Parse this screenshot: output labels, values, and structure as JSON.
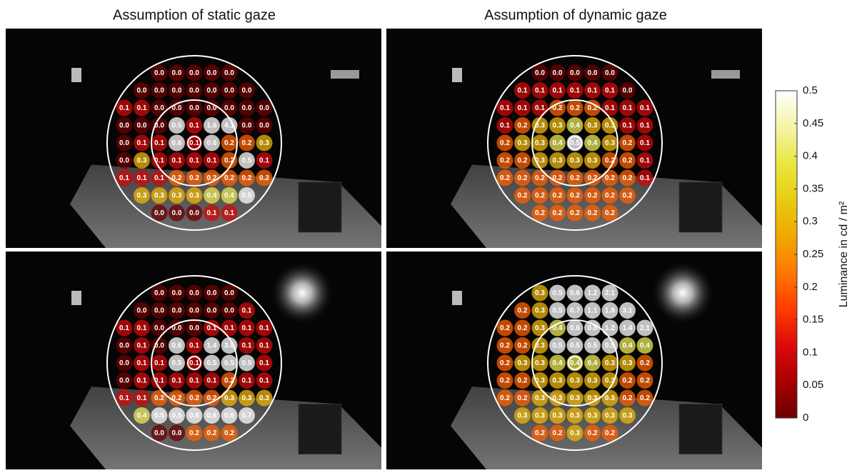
{
  "chart_data": {
    "type": "circle-grid",
    "titles": [
      "Assumption of static gaze",
      "Assumption of dynamic gaze"
    ],
    "panels": [
      {
        "values": [
          [
            0.0,
            0.0,
            0.0,
            0.0,
            0.0
          ],
          [
            0.0,
            0.0,
            0.0,
            0.0,
            0.0,
            0.0,
            0.0
          ],
          [
            0.1,
            0.1,
            0.0,
            0.0,
            0.0,
            0.0,
            0.0,
            0.0,
            0.0
          ],
          [
            0.0,
            0.0,
            0.0,
            0.5,
            0.1,
            1.6,
            4.1,
            0.0,
            0.0
          ],
          [
            0.0,
            0.1,
            0.1,
            0.6,
            0.1,
            0.6,
            0.2,
            0.2,
            0.3
          ],
          [
            0.0,
            0.3,
            0.1,
            0.1,
            0.1,
            0.1,
            0.2,
            0.5,
            0.1
          ],
          [
            0.1,
            0.1,
            0.1,
            0.2,
            0.2,
            0.2,
            0.2,
            0.2,
            0.2
          ],
          [
            0.3,
            0.3,
            0.3,
            0.3,
            0.4,
            0.4,
            0.5
          ],
          [
            0.0,
            0.0,
            0.0,
            0.1,
            0.1
          ]
        ],
        "value_labels": [
          [
            "0.0",
            "0.0",
            "0.0",
            "0.0",
            "0.0"
          ],
          [
            "0.0",
            "0.0",
            "0.0",
            "0.0",
            "0.0",
            "0.0",
            "0.0"
          ],
          [
            "0.1",
            "0.1",
            "0.0",
            "0.0",
            "0.0",
            "0.0",
            "0.0",
            "0.0",
            "0.0"
          ],
          [
            "0.0",
            "0.0",
            "0.0",
            "0.5",
            "0.1",
            "1.6",
            "4.1",
            "0.0",
            "0.0"
          ],
          [
            "0.0",
            "0.1",
            "0.1",
            "0.6",
            "0.1",
            "0.6",
            "0.2",
            "0.2",
            "0.3"
          ],
          [
            "0.0",
            "0.3",
            "0.1",
            "0.1",
            "0.1",
            "0.1",
            "0.2",
            "0.5",
            "0.1"
          ],
          [
            "0.1",
            "0.1",
            "0.1",
            "0.2",
            "0.2",
            "0.2",
            "0.2",
            "0.2",
            "0.2"
          ],
          [
            "0.3",
            "0.3",
            "0.3",
            "0.3",
            "0.4",
            "0.4",
            "0.5"
          ],
          [
            "0.0",
            "0.0",
            "0.0",
            "0.1",
            "0.1"
          ]
        ]
      },
      {
        "values": [
          [
            0.0,
            0.0,
            0.0,
            0.0,
            0.0
          ],
          [
            0.1,
            0.1,
            0.1,
            0.1,
            0.1,
            0.1,
            0.0
          ],
          [
            0.1,
            0.1,
            0.1,
            0.2,
            0.2,
            0.2,
            0.1,
            0.1,
            0.1
          ],
          [
            0.1,
            0.2,
            0.3,
            0.3,
            0.4,
            0.3,
            0.3,
            0.1,
            0.1
          ],
          [
            0.2,
            0.3,
            0.3,
            0.4,
            0.5,
            0.4,
            0.3,
            0.2,
            0.1
          ],
          [
            0.2,
            0.2,
            0.3,
            0.3,
            0.3,
            0.3,
            0.2,
            0.2,
            0.1
          ],
          [
            0.2,
            0.2,
            0.2,
            0.2,
            0.2,
            0.2,
            0.2,
            0.2,
            0.1
          ],
          [
            0.2,
            0.2,
            0.2,
            0.2,
            0.2,
            0.2,
            0.2
          ],
          [
            0.2,
            0.2,
            0.2,
            0.2,
            0.2
          ]
        ],
        "value_labels": [
          [
            "0.0",
            "0.0",
            "0.0",
            "0.0",
            "0.0"
          ],
          [
            "0.1",
            "0.1",
            "0.1",
            "0.1",
            "0.1",
            "0.1",
            "0.0"
          ],
          [
            "0.1",
            "0.1",
            "0.1",
            "0.2",
            "0.2",
            "0.2",
            "0.1",
            "0.1",
            "0.1"
          ],
          [
            "0.1",
            "0.2",
            "0.3",
            "0.3",
            "0.4",
            "0.3",
            "0.3",
            "0.1",
            "0.1"
          ],
          [
            "0.2",
            "0.3",
            "0.3",
            "0.4",
            "0.5",
            "0.4",
            "0.3",
            "0.2",
            "0.1"
          ],
          [
            "0.2",
            "0.2",
            "0.3",
            "0.3",
            "0.3",
            "0.3",
            "0.2",
            "0.2",
            "0.1"
          ],
          [
            "0.2",
            "0.2",
            "0.2",
            "0.2",
            "0.2",
            "0.2",
            "0.2",
            "0.2",
            "0.1"
          ],
          [
            "0.2",
            "0.2",
            "0.2",
            "0.2",
            "0.2",
            "0.2",
            "0.2"
          ],
          [
            "0.2",
            "0.2",
            "0.2",
            "0.2",
            "0.2"
          ]
        ]
      },
      {
        "values": [
          [
            0.0,
            0.0,
            0.0,
            0.0,
            0.0
          ],
          [
            0.0,
            0.0,
            0.0,
            0.0,
            0.0,
            0.0,
            0.1
          ],
          [
            0.1,
            0.1,
            0.0,
            0.0,
            0.0,
            0.1,
            0.1,
            0.1,
            0.1
          ],
          [
            0.0,
            0.1,
            0.0,
            0.6,
            0.1,
            1.4,
            3.0,
            0.1,
            0.1
          ],
          [
            0.0,
            0.1,
            0.1,
            0.5,
            0.1,
            0.5,
            0.5,
            0.5,
            0.1
          ],
          [
            0.0,
            0.1,
            0.1,
            0.1,
            0.1,
            0.1,
            0.2,
            0.1,
            0.1
          ],
          [
            0.1,
            0.1,
            0.2,
            0.2,
            0.2,
            0.2,
            0.3,
            0.3,
            0.3
          ],
          [
            0.4,
            0.5,
            0.5,
            0.6,
            0.6,
            0.6,
            0.7
          ],
          [
            0.0,
            0.0,
            0.2,
            0.2,
            0.2
          ]
        ],
        "value_labels": [
          [
            "0.0",
            "0.0",
            "0.0",
            "0.0",
            "0.0"
          ],
          [
            "0.0",
            "0.0",
            "0.0",
            "0.0",
            "0.0",
            "0.0",
            "0.1"
          ],
          [
            "0.1",
            "0.1",
            "0.0",
            "0.0",
            "0.0",
            "0.1",
            "0.1",
            "0.1",
            "0.1"
          ],
          [
            "0.0",
            "0.1",
            "0.0",
            "0.6",
            "0.1",
            "1.4",
            "3.0",
            "0.1",
            "0.1"
          ],
          [
            "0.0",
            "0.1",
            "0.1",
            "0.5",
            "0.1",
            "0.5",
            "0.5",
            "0.5",
            "0.1"
          ],
          [
            "0.0",
            "0.1",
            "0.1",
            "0.1",
            "0.1",
            "0.1",
            "0.2",
            "0.1",
            "0.1"
          ],
          [
            "0.1",
            "0.1",
            "0.2",
            "0.2",
            "0.2",
            "0.2",
            "0.3",
            "0.3",
            "0.3"
          ],
          [
            "0.4",
            "0.5",
            "0.5",
            "0.6",
            "0.6",
            "0.6",
            "0.7"
          ],
          [
            "0.0",
            "0.0",
            "0.2",
            "0.2",
            "0.2"
          ]
        ]
      },
      {
        "values": [
          [
            0.3,
            0.5,
            0.6,
            1.2,
            2.1
          ],
          [
            0.2,
            0.3,
            0.5,
            0.7,
            1.1,
            1.8,
            3.1
          ],
          [
            0.2,
            0.2,
            0.3,
            0.4,
            0.6,
            0.8,
            1.2,
            1.4,
            2.1
          ],
          [
            0.2,
            0.2,
            0.3,
            0.5,
            0.5,
            0.5,
            0.5,
            0.4,
            0.4
          ],
          [
            0.2,
            0.3,
            0.3,
            0.4,
            0.4,
            0.4,
            0.3,
            0.3,
            0.2
          ],
          [
            0.2,
            0.2,
            0.3,
            0.3,
            0.3,
            0.3,
            0.3,
            0.2,
            0.2
          ],
          [
            0.2,
            0.2,
            0.3,
            0.3,
            0.3,
            0.3,
            0.3,
            0.2,
            0.2
          ],
          [
            0.3,
            0.3,
            0.3,
            0.3,
            0.3,
            0.3,
            0.3
          ],
          [
            0.2,
            0.2,
            0.3,
            0.2,
            0.2
          ]
        ],
        "value_labels": [
          [
            "0.3",
            "0.5",
            "0.6",
            "1.2",
            "2.1"
          ],
          [
            "0.2",
            "0.3",
            "0.5",
            "0.7",
            "1.1",
            "1.8",
            "3.1"
          ],
          [
            "0.2",
            "0.2",
            "0.3",
            "0.4",
            "0.6",
            "0.8",
            "1.2",
            "1.4",
            "2.1"
          ],
          [
            "0.2",
            "0.2",
            "0.3",
            "0.5",
            "0.5",
            "0.5",
            "0.5",
            "0.4",
            "0.4"
          ],
          [
            "0.2",
            "0.3",
            "0.3",
            "0.4",
            "0.4",
            "0.4",
            "0.3",
            "0.3",
            "0.2"
          ],
          [
            "0.2",
            "0.2",
            "0.3",
            "0.3",
            "0.3",
            "0.3",
            "0.3",
            "0.2",
            "0.2"
          ],
          [
            "0.2",
            "0.2",
            "0.3",
            "0.3",
            "0.3",
            "0.3",
            "0.3",
            "0.2",
            "0.2"
          ],
          [
            "0.3",
            "0.3",
            "0.3",
            "0.3",
            "0.3",
            "0.3",
            "0.3"
          ],
          [
            "0.2",
            "0.2",
            "0.3",
            "0.2",
            "0.2"
          ]
        ]
      }
    ],
    "colorbar": {
      "label": "Luminance in cd / m²",
      "lim": [
        0,
        0.5
      ],
      "ticks": [
        0,
        0.05,
        0.1,
        0.15,
        0.2,
        0.25,
        0.3,
        0.35,
        0.4,
        0.45,
        0.5
      ],
      "colormap": [
        "#6e0000",
        "#a80000",
        "#dc0a0a",
        "#ff3c00",
        "#ff7800",
        "#f0a800",
        "#e8cc10",
        "#e8e840",
        "#f4f4a8",
        "#ffffff"
      ]
    }
  }
}
